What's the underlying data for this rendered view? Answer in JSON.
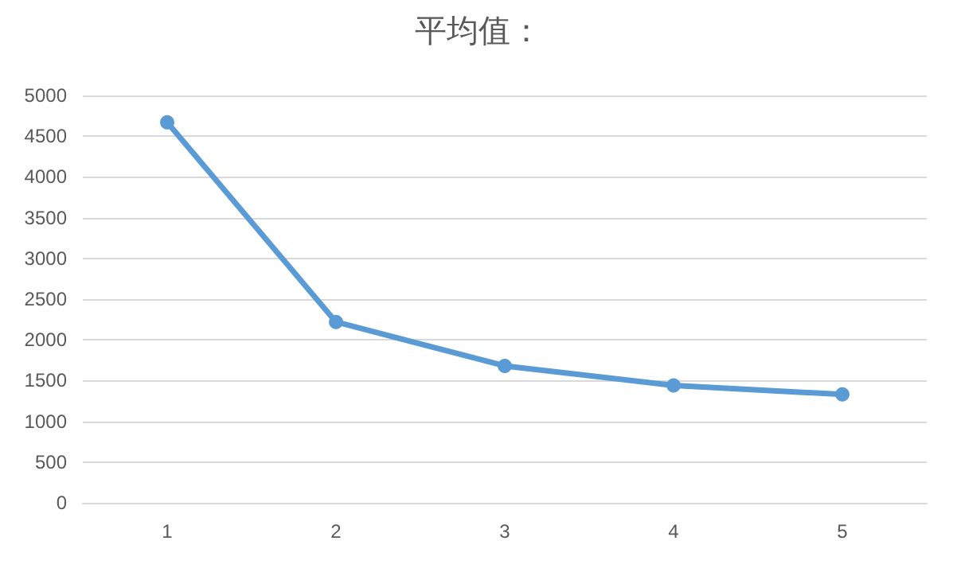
{
  "chart_data": {
    "type": "line",
    "title": "平均值：",
    "categories": [
      "1",
      "2",
      "3",
      "4",
      "5"
    ],
    "series": [
      {
        "color": "#5b9bd5",
        "values": [
          4670,
          2220,
          1680,
          1440,
          1330
        ]
      }
    ],
    "ylim": [
      0,
      5000
    ],
    "yticks": [
      0,
      500,
      1000,
      1500,
      2000,
      2500,
      3000,
      3500,
      4000,
      4500,
      5000
    ],
    "grid": "y",
    "marker": "circle",
    "line_style": "solid"
  }
}
